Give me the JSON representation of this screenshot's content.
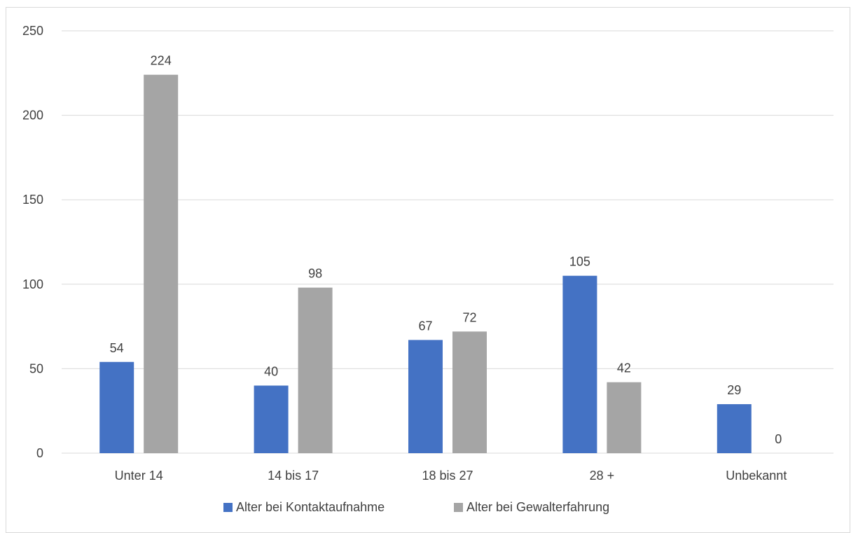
{
  "chart_data": {
    "type": "bar",
    "title": "",
    "xlabel": "",
    "ylabel": "",
    "categories": [
      "Unter 14",
      "14 bis 17",
      "18 bis 27",
      "28 +",
      "Unbekannt"
    ],
    "series": [
      {
        "name": "Alter bei Kontaktaufnahme",
        "color": "#4472c4",
        "values": [
          54,
          40,
          67,
          105,
          29
        ]
      },
      {
        "name": "Alter bei Gewalterfahrung",
        "color": "#a5a5a5",
        "values": [
          224,
          98,
          72,
          42,
          0
        ]
      }
    ],
    "ylim": [
      0,
      250
    ],
    "yticks": [
      0,
      50,
      100,
      150,
      200,
      250
    ],
    "grid": true,
    "legend_position": "bottom",
    "data_labels": true
  }
}
